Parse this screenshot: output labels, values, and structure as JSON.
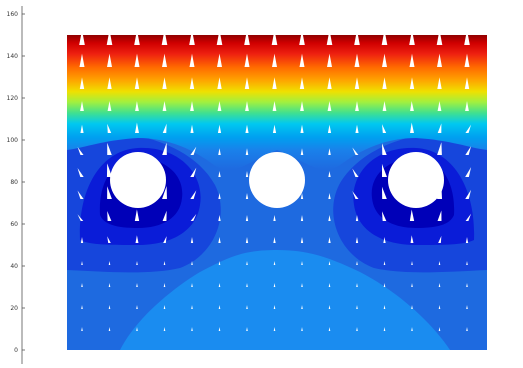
{
  "chart_data": {
    "type": "heatmap",
    "title": "",
    "xlabel": "",
    "ylabel": "",
    "ylim": [
      -5,
      165
    ],
    "grid": false,
    "legend": "none",
    "y_ticks": [
      {
        "value": 0,
        "label": "0"
      },
      {
        "value": 20,
        "label": "20"
      },
      {
        "value": 40,
        "label": "40"
      },
      {
        "value": 60,
        "label": "60"
      },
      {
        "value": 80,
        "label": "80"
      },
      {
        "value": 100,
        "label": "100"
      },
      {
        "value": 120,
        "label": "120"
      },
      {
        "value": 140,
        "label": "140"
      },
      {
        "value": 160,
        "label": "160"
      }
    ],
    "domain": {
      "y": [
        0,
        150
      ]
    },
    "colormap": "jet",
    "holes": [
      {
        "name": "left-hole",
        "y": 80
      },
      {
        "name": "center-hole",
        "y": 80
      },
      {
        "name": "right-hole",
        "y": 80
      }
    ],
    "arrows": "white vector field, pointing upward, strongest near the left and right holes"
  },
  "colors": {
    "dark_blue": "#00008f",
    "blue": "#0a1cd8",
    "mid_blue": "#1e6ae0",
    "light_blue": "#1a8cf0",
    "cyan": "#00c8f0",
    "green": "#40e080",
    "yellow": "#f0f000",
    "orange": "#ff9000",
    "red": "#ee1010",
    "dark_red": "#900000",
    "arrow": "#ffffff"
  }
}
